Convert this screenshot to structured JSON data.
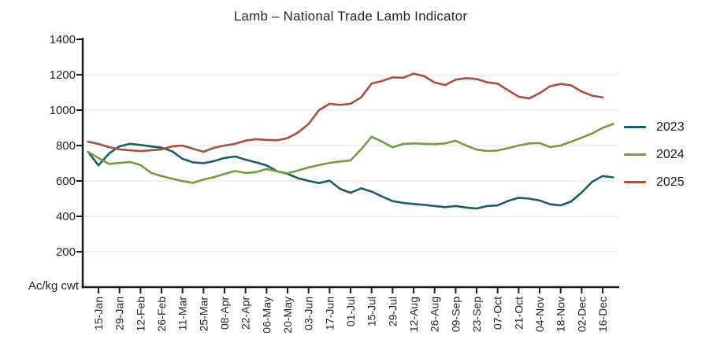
{
  "title": "Lamb – National Trade Lamb Indicator",
  "y_axis_unit_label": "Ac/kg cwt",
  "colors": {
    "axis": "#1a1a1a",
    "grid": "#eaeaea",
    "text": "#262626",
    "series_2023": "#175f6b",
    "series_2024": "#70a03c",
    "series_2025": "#a94f3b"
  },
  "chart_data": {
    "type": "line",
    "title": "Lamb – National Trade Lamb Indicator",
    "ylabel": "Ac/kg cwt",
    "xlabel": "",
    "ylim": [
      0,
      1400
    ],
    "yticks": [
      200,
      400,
      600,
      800,
      1000,
      1200,
      1400
    ],
    "grid": "horizontal",
    "legend_position": "right",
    "x_tick_labels": [
      "15-Jan",
      "29-Jan",
      "12-Feb",
      "26-Feb",
      "11-Mar",
      "25-Mar",
      "08-Apr",
      "22-Apr",
      "06-May",
      "20-May",
      "03-Jun",
      "17-Jun",
      "01-Jul",
      "15-Jul",
      "29-Jul",
      "12-Aug",
      "26-Aug",
      "09-Sep",
      "23-Sep",
      "07-Oct",
      "21-Oct",
      "04-Nov",
      "18-Nov",
      "02-Dec",
      "16-Dec"
    ],
    "points_per_label": 2,
    "series": [
      {
        "name": "2023",
        "color": "#175f6b",
        "values": [
          765,
          688,
          755,
          795,
          810,
          803,
          795,
          788,
          768,
          725,
          705,
          700,
          712,
          730,
          738,
          720,
          705,
          688,
          655,
          640,
          615,
          600,
          588,
          602,
          555,
          533,
          558,
          540,
          512,
          486,
          476,
          470,
          465,
          458,
          452,
          458,
          450,
          444,
          458,
          462,
          487,
          505,
          500,
          490,
          468,
          462,
          484,
          535,
          595,
          628,
          620
        ]
      },
      {
        "name": "2024",
        "color": "#70a03c",
        "values": [
          764,
          730,
          696,
          702,
          707,
          690,
          646,
          628,
          613,
          599,
          589,
          608,
          622,
          640,
          656,
          645,
          650,
          667,
          654,
          643,
          659,
          676,
          690,
          702,
          710,
          716,
          778,
          850,
          822,
          790,
          809,
          812,
          810,
          808,
          812,
          827,
          800,
          777,
          769,
          772,
          785,
          800,
          812,
          814,
          791,
          800,
          822,
          845,
          868,
          900,
          922
        ]
      },
      {
        "name": "2025",
        "color": "#a94f3b",
        "values": [
          822,
          809,
          791,
          778,
          773,
          769,
          773,
          778,
          795,
          800,
          782,
          765,
          787,
          800,
          810,
          828,
          836,
          832,
          830,
          842,
          874,
          922,
          1000,
          1036,
          1030,
          1036,
          1072,
          1150,
          1165,
          1185,
          1183,
          1206,
          1192,
          1156,
          1142,
          1172,
          1181,
          1176,
          1157,
          1150,
          1112,
          1076,
          1066,
          1096,
          1135,
          1148,
          1140,
          1105,
          1082,
          1072
        ]
      }
    ]
  }
}
